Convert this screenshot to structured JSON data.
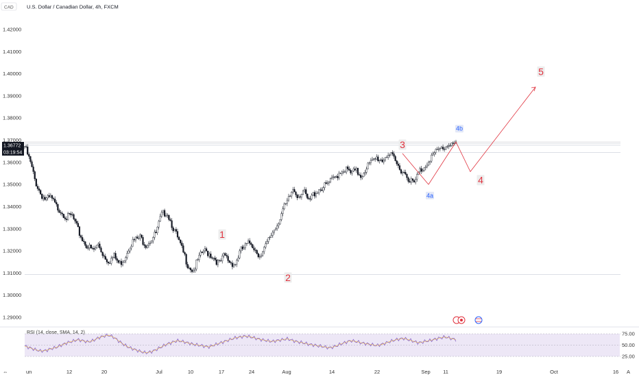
{
  "header": {
    "symbol_tag": "CAD",
    "title": "U.S. Dollar / Canadian Dollar, 4h, FXCM"
  },
  "price_tag": {
    "value": "1.36772",
    "timer": "03:19:54"
  },
  "rsi": {
    "label": "RSI (14, close, SMA, 14, 2)",
    "ticks": [
      "75.00",
      "50.00",
      "25.00"
    ]
  },
  "corner": {
    "left": "⇔",
    "right": "A"
  },
  "colors": {
    "wave": "#e0313d",
    "wave_sub": "#2962ff",
    "candle": "#131722",
    "rsi_line": "#7e57c2",
    "rsi_ma": "#f5c242",
    "band": "#ede7f6"
  },
  "chart_data": {
    "type": "candlestick",
    "title": "U.S. Dollar / Canadian Dollar, 4h, FXCM",
    "xlabel": "",
    "ylabel": "",
    "ylim": [
      1.285,
      1.4265
    ],
    "y_ticks": [
      "1.42000",
      "1.41000",
      "1.40000",
      "1.39000",
      "1.38000",
      "1.37000",
      "1.36000",
      "1.35000",
      "1.34000",
      "1.33000",
      "1.32000",
      "1.31000",
      "1.30000",
      "1.29000"
    ],
    "x_ticks": [
      "un",
      "12",
      "20",
      "Jul",
      "10",
      "17",
      "24",
      "Aug",
      "14",
      "22",
      "Sep",
      "11",
      "19",
      "Oct",
      "16"
    ],
    "close_path": [
      1.3672,
      1.3605,
      1.3515,
      1.346,
      1.343,
      1.344,
      1.34,
      1.338,
      1.335,
      1.336,
      1.33,
      1.325,
      1.322,
      1.32,
      1.323,
      1.318,
      1.3155,
      1.3175,
      1.314,
      1.317,
      1.323,
      1.325,
      1.326,
      1.323,
      1.325,
      1.328,
      1.336,
      1.338,
      1.332,
      1.326,
      1.32,
      1.314,
      1.311,
      1.316,
      1.32,
      1.319,
      1.317,
      1.314,
      1.318,
      1.315,
      1.314,
      1.32,
      1.322,
      1.324,
      1.32,
      1.3175,
      1.323,
      1.328,
      1.332,
      1.338,
      1.342,
      1.348,
      1.345,
      1.347,
      1.342,
      1.346,
      1.348,
      1.349,
      1.351,
      1.353,
      1.356,
      1.357,
      1.355,
      1.356,
      1.354,
      1.358,
      1.36,
      1.362,
      1.361,
      1.364,
      1.362,
      1.358,
      1.356,
      1.353,
      1.35,
      1.356,
      1.358,
      1.362,
      1.364,
      1.366,
      1.367,
      1.369,
      1.3677
    ],
    "reference_lines": [
      1.3692,
      1.3685,
      1.3677,
      1.3645,
      1.3093
    ],
    "elliott_waves": [
      {
        "label": "1",
        "price": 1.3275
      },
      {
        "label": "2",
        "price": 1.311
      },
      {
        "label": "3",
        "price": 1.364
      },
      {
        "label": "4",
        "price": 1.3558
      },
      {
        "label": "5",
        "price": 1.395
      },
      {
        "label": "4a",
        "price": 1.35
      },
      {
        "label": "4b",
        "price": 1.3692
      }
    ],
    "projection": [
      1.35,
      1.3692,
      1.3558,
      1.394
    ],
    "rsi_ticks": [
      75,
      50,
      25
    ],
    "rsi_values": [
      48,
      44,
      40,
      37,
      38,
      42,
      45,
      50,
      55,
      58,
      62,
      60,
      57,
      60,
      66,
      70,
      72,
      67,
      58,
      50,
      44,
      40,
      36,
      33,
      35,
      40,
      46,
      52,
      56,
      60,
      58,
      55,
      52,
      50,
      48,
      46,
      50,
      54,
      58,
      62,
      66,
      68,
      70,
      68,
      65,
      62,
      60,
      58,
      60,
      62,
      64,
      60,
      57,
      55,
      52,
      50,
      48,
      46,
      44,
      47,
      52,
      56,
      60,
      58,
      55,
      53,
      51,
      49,
      52,
      56,
      60,
      63,
      65,
      62,
      58,
      55,
      58,
      60,
      63,
      66,
      68,
      65,
      62
    ]
  }
}
